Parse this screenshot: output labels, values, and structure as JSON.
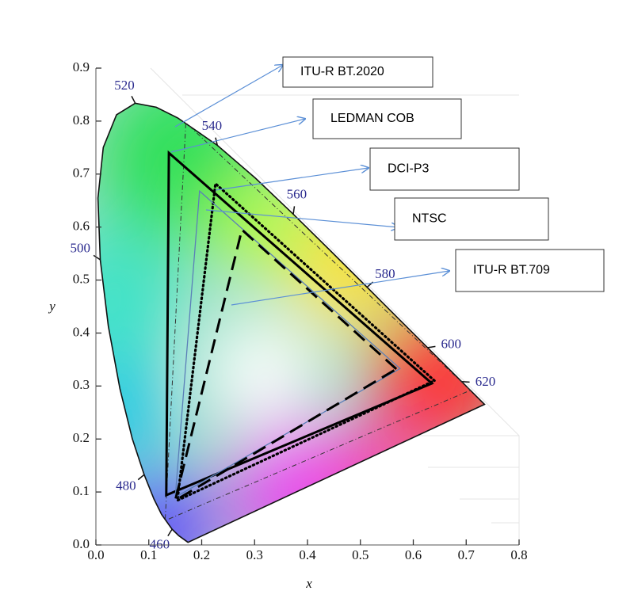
{
  "chart_data": {
    "type": "chromaticity",
    "x_label": "x",
    "y_label": "y",
    "xlim": [
      0,
      0.8
    ],
    "ylim": [
      0,
      0.9
    ],
    "xticks": [
      {
        "value": 0,
        "label": "0.0"
      },
      0.1,
      0.2,
      0.3,
      0.4,
      0.5,
      0.6,
      0.7,
      0.8
    ],
    "yticks": [
      {
        "value": 0,
        "label": "0.0"
      },
      0.1,
      0.2,
      0.3,
      0.4,
      0.5,
      0.6,
      0.7,
      0.8,
      0.9
    ],
    "locus": {
      "x": [
        0.1741,
        0.1566,
        0.144,
        0.1241,
        0.1096,
        0.0913,
        0.0687,
        0.0454,
        0.0235,
        0.0082,
        0.0039,
        0.0139,
        0.0389,
        0.0743,
        0.1142,
        0.1547,
        0.2296,
        0.3016,
        0.3731,
        0.4441,
        0.5125,
        0.5752,
        0.627,
        0.6915,
        0.719,
        0.7347
      ],
      "y": [
        0.005,
        0.0177,
        0.0297,
        0.0578,
        0.0868,
        0.1327,
        0.2007,
        0.295,
        0.4127,
        0.5384,
        0.6548,
        0.7502,
        0.812,
        0.8338,
        0.8262,
        0.8059,
        0.7543,
        0.6923,
        0.6245,
        0.5547,
        0.4866,
        0.4242,
        0.3725,
        0.3083,
        0.2809,
        0.2653
      ],
      "wavelengths": [
        null,
        null,
        460,
        null,
        null,
        480,
        null,
        null,
        null,
        500,
        null,
        null,
        null,
        520,
        null,
        null,
        540,
        null,
        560,
        null,
        580,
        null,
        600,
        620,
        null,
        null
      ]
    },
    "series": [
      {
        "name": "ITU-R BT.2020",
        "color": "#333333",
        "style": "dashdot",
        "x": [
          0.708,
          0.17,
          0.131
        ],
        "values": [
          0.292,
          0.797,
          0.046
        ]
      },
      {
        "name": "LEDMAN COB",
        "color": "#000000",
        "style": "solid",
        "x": [
          0.635,
          0.138,
          0.133
        ],
        "values": [
          0.305,
          0.74,
          0.094
        ]
      },
      {
        "name": "DCI-P3",
        "color": "#000000",
        "style": "dotted",
        "x": [
          0.64,
          0.226,
          0.154
        ],
        "values": [
          0.31,
          0.682,
          0.084
        ]
      },
      {
        "name": "NTSC",
        "color": "#5b7fb8",
        "style": "thin",
        "x": [
          0.575,
          0.196,
          0.15
        ],
        "values": [
          0.333,
          0.668,
          0.09
        ]
      },
      {
        "name": "ITU-R BT.709",
        "color": "#000000",
        "style": "dashed",
        "x": [
          0.568,
          0.276,
          0.15
        ],
        "values": [
          0.332,
          0.595,
          0.084
        ]
      }
    ]
  }
}
